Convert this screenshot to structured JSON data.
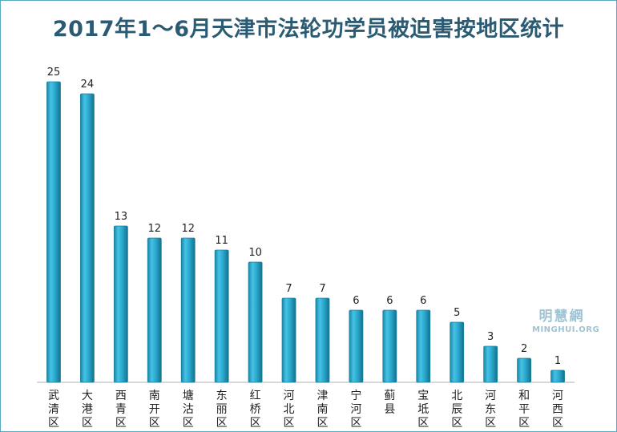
{
  "chart_data": {
    "type": "bar",
    "title": "2017年1～6月天津市法轮功学员被迫害按地区统计",
    "categories": [
      "武清区",
      "大港区",
      "西青区",
      "南开区",
      "塘沽区",
      "东丽区",
      "红桥区",
      "河北区",
      "津南区",
      "宁河区",
      "蓟县",
      "宝坻区",
      "北辰区",
      "河东区",
      "和平区",
      "河西区"
    ],
    "values": [
      25,
      24,
      13,
      12,
      12,
      11,
      10,
      7,
      7,
      6,
      6,
      6,
      5,
      3,
      2,
      1
    ],
    "ylim": [
      0,
      25
    ],
    "grid": false,
    "bar_color": "#2aa8cc",
    "bar_edge_color": "#1b7f9c",
    "title_color": "#2b5a73"
  },
  "watermark": {
    "chinese": "明慧網",
    "english": "MINGHUI.ORG"
  }
}
